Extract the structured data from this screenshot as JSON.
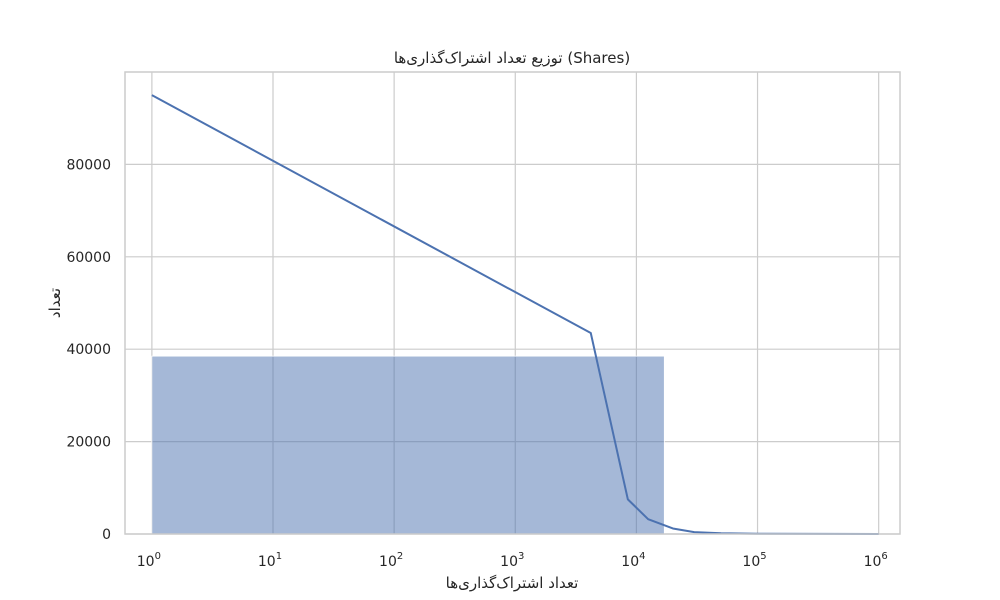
{
  "chart_data": {
    "type": "bar",
    "title": "توزیع تعداد اشتراک‌گذاری‌ها (Shares)",
    "xlabel": "تعداد اشتراک‌گذاری‌ها",
    "ylabel": "تعداد",
    "x_scale": "log",
    "xlim": [
      0.6,
      1500000
    ],
    "ylim": [
      0,
      100000
    ],
    "x_ticks": [
      {
        "value": 1,
        "base": "10",
        "exp": "0"
      },
      {
        "value": 10,
        "base": "10",
        "exp": "1"
      },
      {
        "value": 100,
        "base": "10",
        "exp": "2"
      },
      {
        "value": 1000,
        "base": "10",
        "exp": "3"
      },
      {
        "value": 10000,
        "base": "10",
        "exp": "4"
      },
      {
        "value": 100000,
        "base": "10",
        "exp": "5"
      },
      {
        "value": 1000000,
        "base": "10",
        "exp": "6"
      }
    ],
    "y_ticks": [
      0,
      20000,
      40000,
      60000,
      80000
    ],
    "grid": true,
    "bars": [
      {
        "x_start": 1,
        "x_end": 17000,
        "value": 38500
      }
    ],
    "kde_line": {
      "x": [
        1,
        4200,
        8500,
        12500,
        20000,
        30000,
        50000,
        100000,
        1000000
      ],
      "y": [
        95000,
        43500,
        7500,
        3200,
        1200,
        400,
        150,
        50,
        0
      ]
    },
    "colors": {
      "bar_fill": "#4c72b0",
      "line": "#4c72b0",
      "grid": "#cccccc",
      "frame": "#cccccc"
    }
  }
}
